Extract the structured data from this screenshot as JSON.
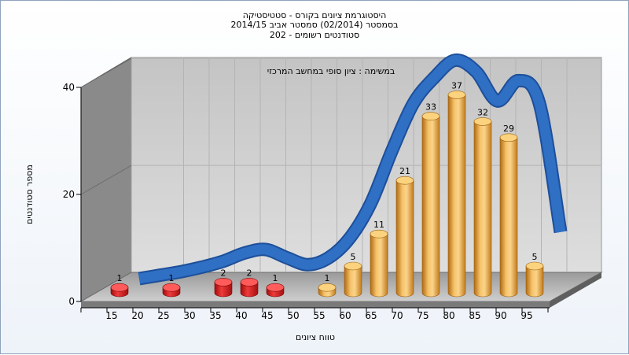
{
  "title": {
    "line1": "היסטוגרמת ציונים בקורס - סטטיסטיקה",
    "line2": "בסמסטר (02/2014) סמסטר אביב 2014/15",
    "line3": "סטודנטים רשומים - 202"
  },
  "chart_data": {
    "type": "bar",
    "title": "היסטוגרמת ציונים בקורס - סטטיסטיקה",
    "annotation": "במשימה : ציון סופי במחשב המרכזי",
    "xlabel": "טווח ציונים",
    "ylabel": "מספר סטודנטים",
    "ylim": [
      0,
      40
    ],
    "yticks": [
      0,
      20,
      40
    ],
    "categories": [
      "15",
      "20",
      "25",
      "30",
      "35",
      "40",
      "45",
      "50",
      "55",
      "60",
      "65",
      "70",
      "75",
      "80",
      "85",
      "90",
      "95"
    ],
    "values": [
      1,
      0,
      1,
      0,
      2,
      2,
      1,
      0,
      1,
      5,
      11,
      21,
      33,
      37,
      32,
      29,
      5
    ],
    "value_labels": [
      "1",
      "",
      "1",
      "",
      "2",
      "2",
      "1",
      "",
      "1",
      "5",
      "11",
      "21",
      "33",
      "37",
      "32",
      "29",
      "5"
    ],
    "bar_colors": [
      "#d21919",
      "#d21919",
      "#d21919",
      "#d21919",
      "#d21919",
      "#d21919",
      "#d21919",
      "#d21919",
      "#e6a23c",
      "#e6a23c",
      "#e6a23c",
      "#e6a23c",
      "#e6a23c",
      "#e6a23c",
      "#e6a23c",
      "#e6a23c",
      "#e6a23c"
    ],
    "trend_line": {
      "color": "#2f6fc4",
      "values": [
        0,
        0.6,
        1.2,
        2.0,
        3.0,
        4.4,
        5.0,
        3.6,
        2.4,
        3.6,
        7.0,
        13.0,
        22.0,
        30.0,
        34.5,
        37.5,
        35.5,
        30.5,
        34.0,
        30.0,
        8.0
      ]
    },
    "grid": true,
    "wall_color": "#cfcfcf",
    "side_wall_color": "#8c8c8c"
  }
}
